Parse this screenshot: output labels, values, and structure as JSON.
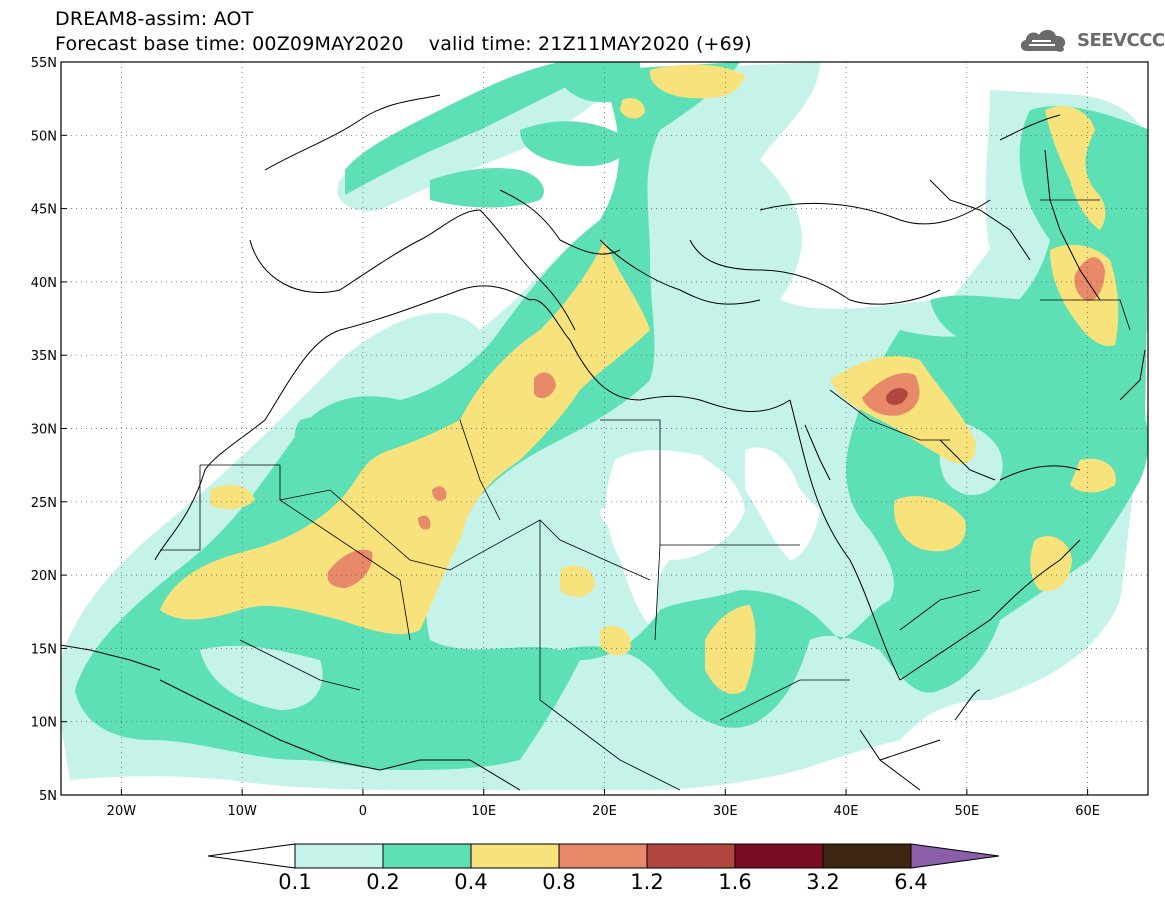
{
  "header": {
    "model": "DREAM8-assim: AOT",
    "base_time": "Forecast base time: 00Z09MAY2020",
    "valid_time": "valid time: 21Z11MAY2020 (+69)",
    "logo_text": "SEEVCCC"
  },
  "map": {
    "lon_range": [
      -25,
      65
    ],
    "lat_range": [
      5,
      55
    ],
    "grid": "dotted",
    "lat_labels": [
      "5N",
      "10N",
      "15N",
      "20N",
      "25N",
      "30N",
      "35N",
      "40N",
      "45N",
      "50N",
      "55N"
    ],
    "lat_values": [
      5,
      10,
      15,
      20,
      25,
      30,
      35,
      40,
      45,
      50,
      55
    ],
    "lon_labels": [
      "20W",
      "10W",
      "0",
      "10E",
      "20E",
      "30E",
      "40E",
      "50E",
      "60E"
    ],
    "lon_values": [
      -20,
      -10,
      0,
      10,
      20,
      30,
      40,
      50,
      60
    ]
  },
  "colorbar": {
    "levels": [
      "0.1",
      "0.2",
      "0.4",
      "0.8",
      "1.2",
      "1.6",
      "3.2",
      "6.4"
    ],
    "colors": [
      "#ffffff",
      "#c6f3e9",
      "#5ee0b7",
      "#f7e27b",
      "#e8896a",
      "#b1463e",
      "#7a0d22",
      "#3f2612",
      "#8a5ea8"
    ]
  },
  "colors": {
    "c1": "#c6f3e9",
    "c2": "#5ee0b7",
    "c3": "#f7e27b",
    "c4": "#e8896a",
    "c5": "#b1463e"
  }
}
